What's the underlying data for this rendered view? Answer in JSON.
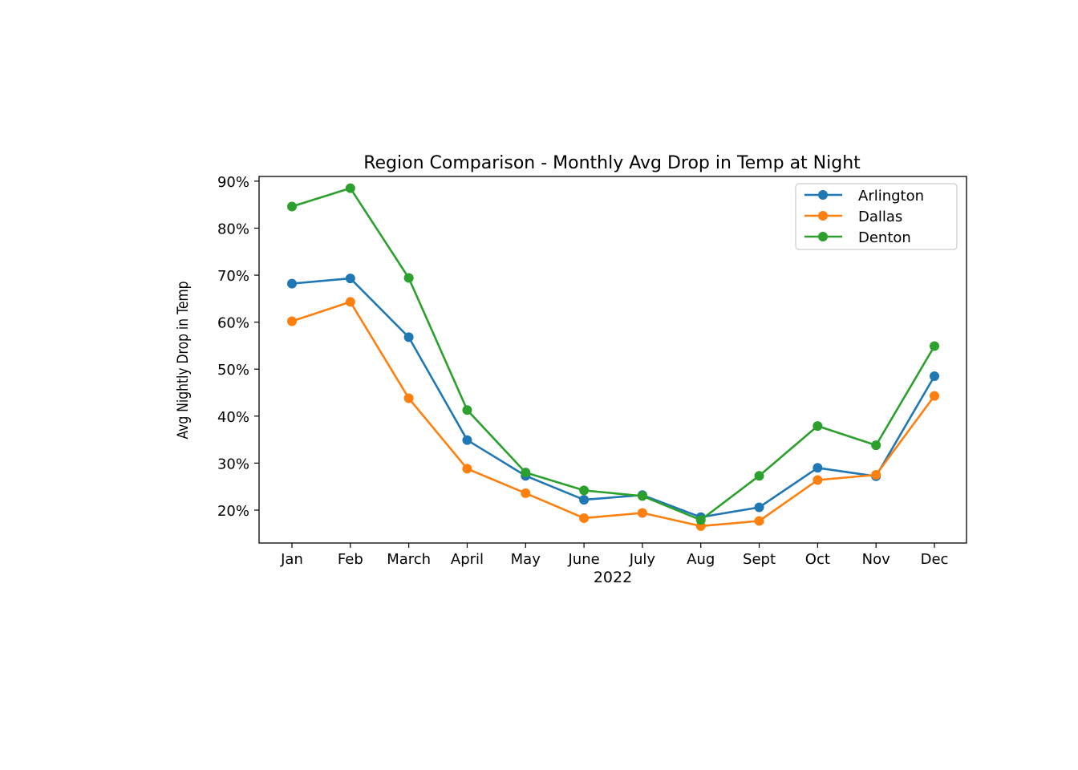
{
  "chart_data": {
    "type": "line",
    "title": "Region Comparison - Monthly Avg Drop in Temp at Night",
    "xlabel": "2022",
    "ylabel": "Avg Nightly Drop in Temp",
    "categories": [
      "Jan",
      "Feb",
      "March",
      "April",
      "May",
      "June",
      "July",
      "Aug",
      "Sept",
      "Oct",
      "Nov",
      "Dec"
    ],
    "yticks": [
      20,
      30,
      40,
      50,
      60,
      70,
      80,
      90
    ],
    "ytick_labels": [
      "20%",
      "30%",
      "40%",
      "50%",
      "60%",
      "70%",
      "80%",
      "90%"
    ],
    "ylim": [
      13,
      91
    ],
    "grid": false,
    "legend_position": "top-right",
    "series": [
      {
        "name": "Arlington",
        "color": "#1f77b4",
        "values": [
          68.2,
          69.3,
          56.8,
          34.9,
          27.3,
          22.2,
          23.2,
          18.5,
          20.6,
          29.0,
          27.2,
          48.5
        ]
      },
      {
        "name": "Dallas",
        "color": "#ff7f0e",
        "values": [
          60.2,
          64.3,
          43.8,
          28.8,
          23.6,
          18.3,
          19.4,
          16.6,
          17.7,
          26.4,
          27.5,
          44.3
        ]
      },
      {
        "name": "Denton",
        "color": "#2ca02c",
        "values": [
          84.6,
          88.5,
          69.4,
          41.3,
          28.0,
          24.2,
          23.0,
          17.9,
          27.3,
          37.9,
          33.8,
          54.9
        ]
      }
    ]
  }
}
